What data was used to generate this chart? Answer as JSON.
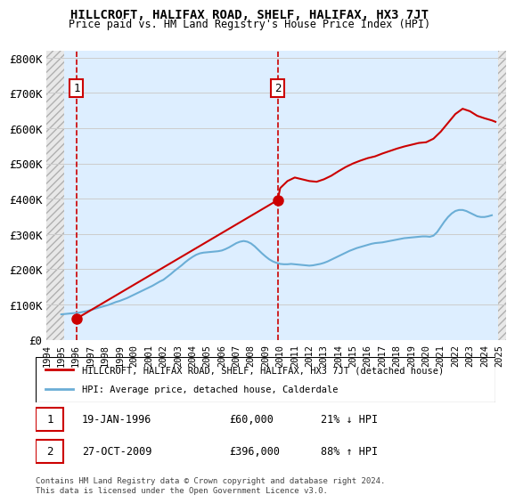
{
  "title": "HILLCROFT, HALIFAX ROAD, SHELF, HALIFAX, HX3 7JT",
  "subtitle": "Price paid vs. HM Land Registry's House Price Index (HPI)",
  "ylabel_ticks": [
    "£0",
    "£100K",
    "£200K",
    "£300K",
    "£400K",
    "£500K",
    "£600K",
    "£700K",
    "£800K"
  ],
  "ytick_values": [
    0,
    100000,
    200000,
    300000,
    400000,
    500000,
    600000,
    700000,
    800000
  ],
  "ylim": [
    0,
    820000
  ],
  "xlim_start": 1994.0,
  "xlim_end": 2025.5,
  "xtick_years": [
    1994,
    1995,
    1996,
    1997,
    1998,
    1999,
    2000,
    2001,
    2002,
    2003,
    2004,
    2005,
    2006,
    2007,
    2008,
    2009,
    2010,
    2011,
    2012,
    2013,
    2014,
    2015,
    2016,
    2017,
    2018,
    2019,
    2020,
    2021,
    2022,
    2023,
    2024,
    2025
  ],
  "hpi_color": "#6baed6",
  "price_color": "#cc0000",
  "sale1_x": 1996.05,
  "sale1_y": 60000,
  "sale2_x": 2009.83,
  "sale2_y": 396000,
  "sale1_label": "1",
  "sale2_label": "2",
  "sale1_date": "19-JAN-1996",
  "sale1_price": "£60,000",
  "sale1_hpi": "21% ↓ HPI",
  "sale2_date": "27-OCT-2009",
  "sale2_price": "£396,000",
  "sale2_hpi": "88% ↑ HPI",
  "legend_line1": "HILLCROFT, HALIFAX ROAD, SHELF, HALIFAX, HX3 7JT (detached house)",
  "legend_line2": "HPI: Average price, detached house, Calderdale",
  "footnote": "Contains HM Land Registry data © Crown copyright and database right 2024.\nThis data is licensed under the Open Government Licence v3.0.",
  "bg_hatch_color": "#d0d0d0",
  "bg_main_color": "#ddeeff",
  "grid_color": "#cccccc",
  "hpi_data_x": [
    1995.0,
    1995.25,
    1995.5,
    1995.75,
    1996.0,
    1996.25,
    1996.5,
    1996.75,
    1997.0,
    1997.25,
    1997.5,
    1997.75,
    1998.0,
    1998.25,
    1998.5,
    1998.75,
    1999.0,
    1999.25,
    1999.5,
    1999.75,
    2000.0,
    2000.25,
    2000.5,
    2000.75,
    2001.0,
    2001.25,
    2001.5,
    2001.75,
    2002.0,
    2002.25,
    2002.5,
    2002.75,
    2003.0,
    2003.25,
    2003.5,
    2003.75,
    2004.0,
    2004.25,
    2004.5,
    2004.75,
    2005.0,
    2005.25,
    2005.5,
    2005.75,
    2006.0,
    2006.25,
    2006.5,
    2006.75,
    2007.0,
    2007.25,
    2007.5,
    2007.75,
    2008.0,
    2008.25,
    2008.5,
    2008.75,
    2009.0,
    2009.25,
    2009.5,
    2009.75,
    2010.0,
    2010.25,
    2010.5,
    2010.75,
    2011.0,
    2011.25,
    2011.5,
    2011.75,
    2012.0,
    2012.25,
    2012.5,
    2012.75,
    2013.0,
    2013.25,
    2013.5,
    2013.75,
    2014.0,
    2014.25,
    2014.5,
    2014.75,
    2015.0,
    2015.25,
    2015.5,
    2015.75,
    2016.0,
    2016.25,
    2016.5,
    2016.75,
    2017.0,
    2017.25,
    2017.5,
    2017.75,
    2018.0,
    2018.25,
    2018.5,
    2018.75,
    2019.0,
    2019.25,
    2019.5,
    2019.75,
    2020.0,
    2020.25,
    2020.5,
    2020.75,
    2021.0,
    2021.25,
    2021.5,
    2021.75,
    2022.0,
    2022.25,
    2022.5,
    2022.75,
    2023.0,
    2023.25,
    2023.5,
    2023.75,
    2024.0,
    2024.25,
    2024.5
  ],
  "hpi_data_y": [
    72000,
    73000,
    74000,
    75000,
    76000,
    77000,
    79000,
    81000,
    84000,
    87000,
    90000,
    93000,
    96000,
    99000,
    103000,
    107000,
    110000,
    114000,
    118000,
    123000,
    128000,
    133000,
    138000,
    143000,
    148000,
    153000,
    159000,
    165000,
    170000,
    178000,
    186000,
    195000,
    203000,
    211000,
    220000,
    228000,
    235000,
    241000,
    245000,
    247000,
    248000,
    249000,
    250000,
    251000,
    253000,
    257000,
    262000,
    268000,
    274000,
    278000,
    280000,
    278000,
    273000,
    265000,
    255000,
    245000,
    236000,
    228000,
    222000,
    218000,
    215000,
    214000,
    214000,
    215000,
    214000,
    213000,
    212000,
    211000,
    210000,
    211000,
    213000,
    215000,
    218000,
    222000,
    227000,
    232000,
    237000,
    242000,
    247000,
    252000,
    256000,
    260000,
    263000,
    266000,
    269000,
    272000,
    274000,
    275000,
    276000,
    278000,
    280000,
    282000,
    284000,
    286000,
    288000,
    289000,
    290000,
    291000,
    292000,
    293000,
    293000,
    292000,
    295000,
    305000,
    320000,
    335000,
    348000,
    358000,
    365000,
    368000,
    368000,
    365000,
    360000,
    355000,
    350000,
    348000,
    348000,
    350000,
    353000
  ],
  "price_data_x": [
    1996.05,
    2009.83,
    2010.0,
    2010.5,
    2011.0,
    2011.5,
    2012.0,
    2012.5,
    2013.0,
    2013.5,
    2014.0,
    2014.5,
    2015.0,
    2015.5,
    2016.0,
    2016.5,
    2017.0,
    2017.5,
    2018.0,
    2018.5,
    2019.0,
    2019.5,
    2020.0,
    2020.5,
    2021.0,
    2021.5,
    2022.0,
    2022.5,
    2023.0,
    2023.5,
    2024.0,
    2024.5,
    2024.75
  ],
  "price_data_y": [
    60000,
    396000,
    430000,
    450000,
    460000,
    455000,
    450000,
    448000,
    455000,
    465000,
    478000,
    490000,
    500000,
    508000,
    515000,
    520000,
    528000,
    535000,
    542000,
    548000,
    553000,
    558000,
    560000,
    570000,
    590000,
    615000,
    640000,
    655000,
    648000,
    635000,
    628000,
    622000,
    618000
  ]
}
